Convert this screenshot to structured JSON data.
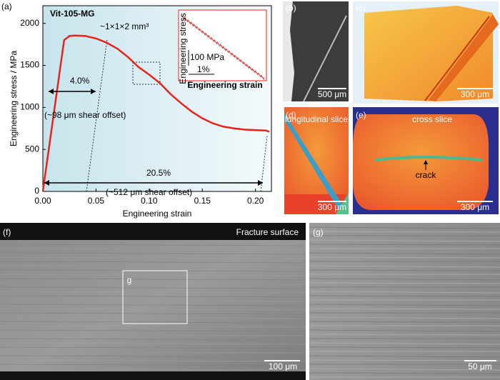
{
  "chart_data": {
    "type": "line",
    "xlabel": "Engineering strain",
    "ylabel": "Engineering stress / MPa",
    "x": [
      0,
      0.005,
      0.01,
      0.015,
      0.02,
      0.025,
      0.03,
      0.04,
      0.05,
      0.06,
      0.07,
      0.08,
      0.09,
      0.1,
      0.11,
      0.12,
      0.13,
      0.14,
      0.15,
      0.16,
      0.17,
      0.18,
      0.19,
      0.2,
      0.21,
      0.213
    ],
    "series": [
      {
        "color": "#e8231c",
        "values": [
          0,
          450,
          900,
          1350,
          1800,
          1850,
          1855,
          1850,
          1820,
          1770,
          1700,
          1600,
          1480,
          1390,
          1290,
          1160,
          1050,
          950,
          870,
          810,
          770,
          750,
          735,
          730,
          725,
          710
        ]
      }
    ],
    "xlim": [
      0,
      0.215
    ],
    "ylim": [
      0,
      2210
    ],
    "xticks": [
      {
        "value": 0,
        "label": "0.00"
      },
      {
        "value": 0.05,
        "label": "0.05"
      },
      {
        "value": 0.1,
        "label": "0.10"
      },
      {
        "value": 0.15,
        "label": "0.15"
      },
      {
        "value": 0.2,
        "label": "0.20"
      }
    ],
    "yticks": [
      0,
      500,
      1000,
      1500,
      2000
    ],
    "annotations": [
      "Vit-105-MG",
      "~1×1×2 mm³",
      "4.0%",
      "(~98 μm shear offset)",
      "20.5%",
      "(~512 μm shear offset)"
    ],
    "inset": {
      "ylabel": "Engineering stress",
      "xlabel": "Engineering strain",
      "stress_bar": "100 MPa",
      "strain_bar": "1%"
    }
  },
  "panels": {
    "labels": [
      "(a)",
      "(b)",
      "(c)",
      "(d)",
      "(e)",
      "(f)",
      "(g)"
    ],
    "b": {
      "scale": "500 μm"
    },
    "c": {
      "scale": "300 μm"
    },
    "d": {
      "title": "longitudinal slice",
      "scale": "300 μm"
    },
    "e": {
      "title": "cross slice",
      "note": "crack",
      "scale": "300 μm"
    },
    "f": {
      "title": "Fracture surface",
      "box": "g",
      "scale": "100 μm"
    },
    "g": {
      "scale": "50 μm"
    }
  }
}
